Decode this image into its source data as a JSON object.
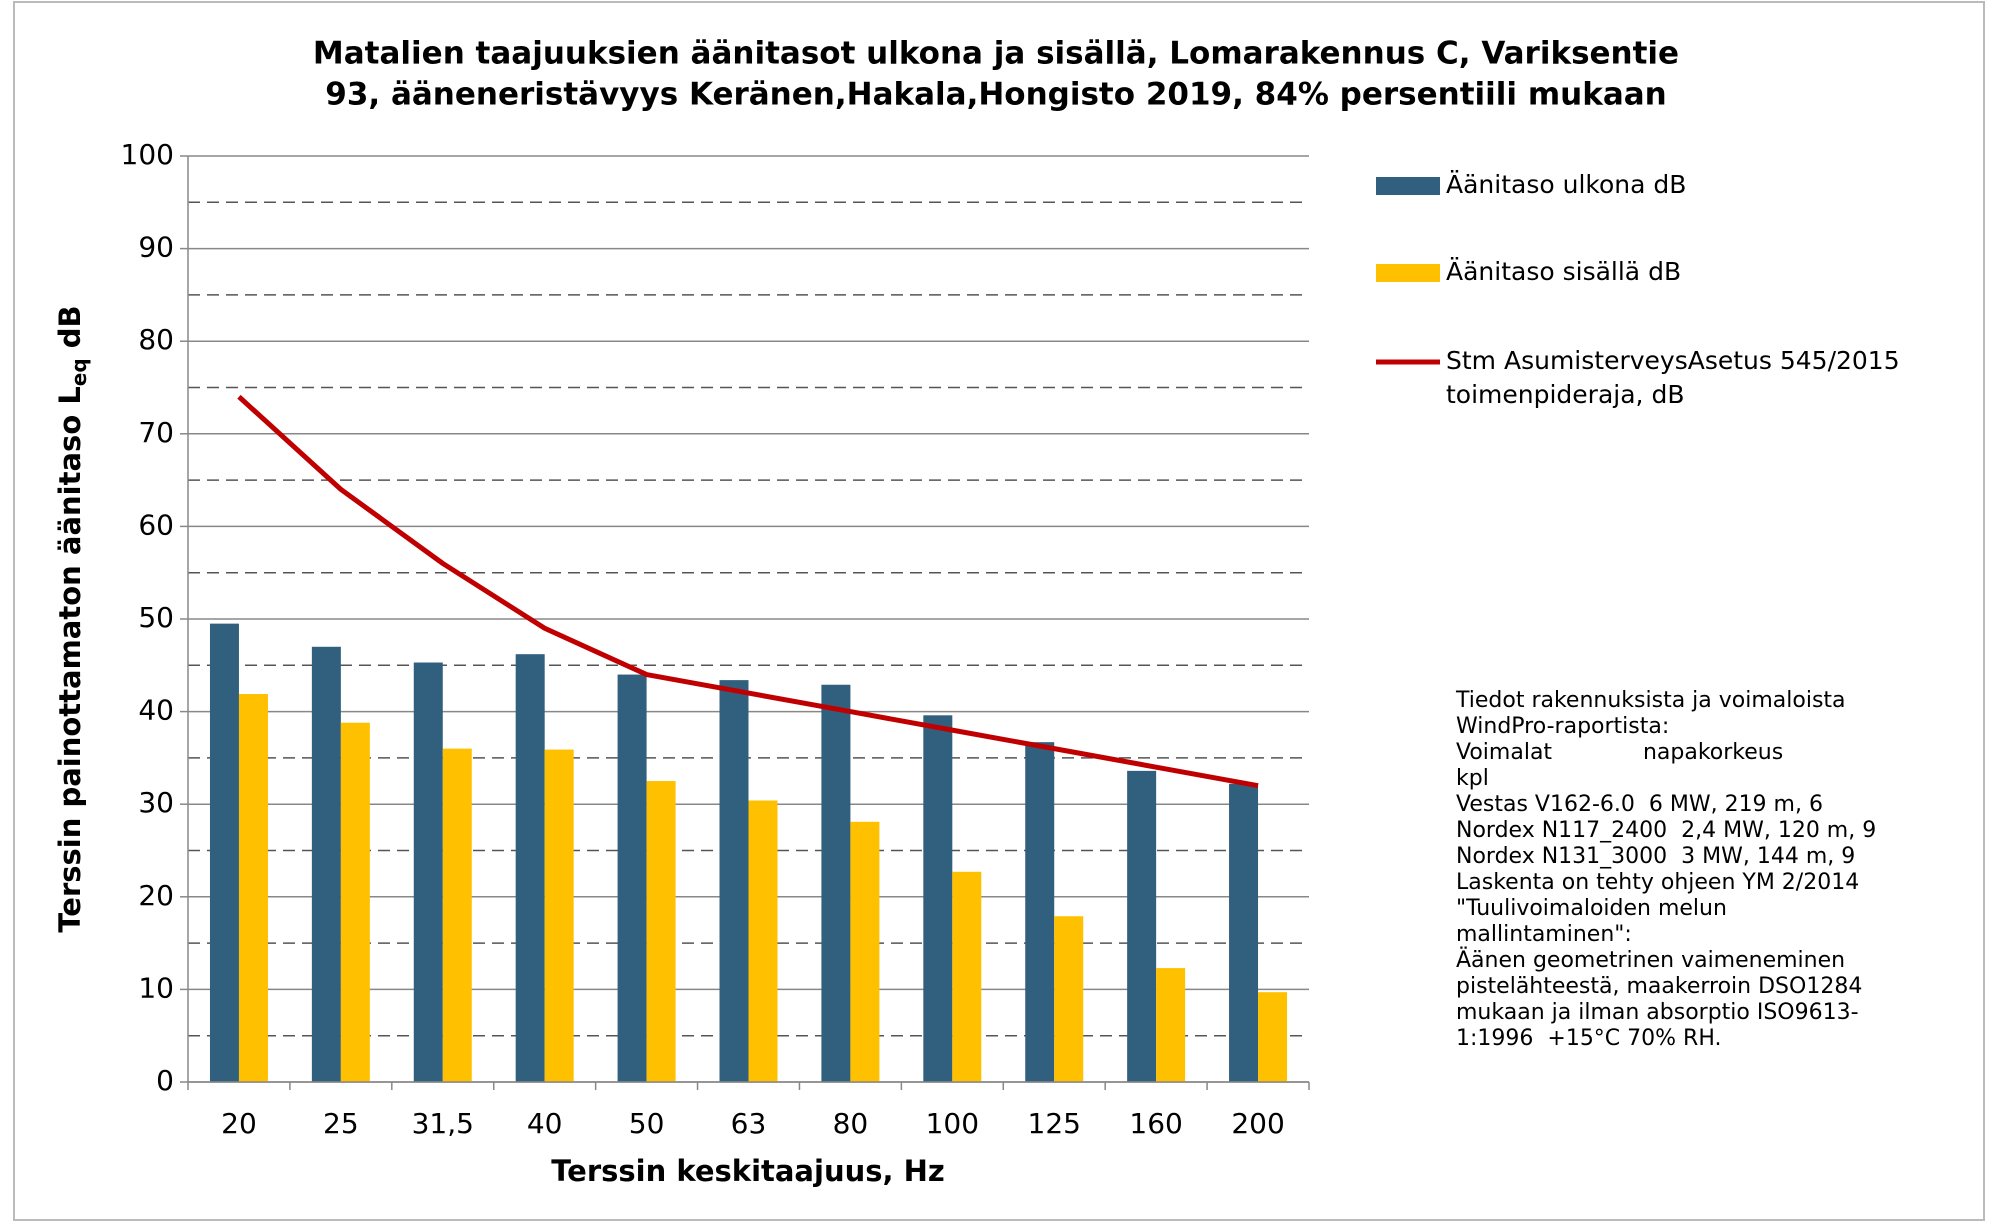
{
  "chart_data": {
    "type": "bar",
    "title": [
      "Matalien taajuuksien äänitasot ulkona ja sisällä, Lomarakennus C, Variksentie",
      "93, ääneneristävyys Keränen,Hakala,Hongisto 2019, 84% persentiili mukaan"
    ],
    "xlabel": "Terssin keskitaajuus, Hz",
    "ylabel": {
      "text": "Terssin painottamaton äänitaso L",
      "subscript": "eq",
      "suffix": " dB"
    },
    "categories": [
      "20",
      "25",
      "31,5",
      "40",
      "50",
      "63",
      "80",
      "100",
      "125",
      "160",
      "200"
    ],
    "series": [
      {
        "name": "Äänitaso ulkona dB",
        "type": "bar",
        "color": "#31607f",
        "values": [
          49.5,
          47.0,
          45.3,
          46.2,
          44.0,
          43.4,
          42.9,
          39.6,
          36.7,
          33.6,
          32.2
        ]
      },
      {
        "name": "Äänitaso sisällä dB",
        "type": "bar",
        "color": "#ffc000",
        "values": [
          41.9,
          38.8,
          36.0,
          35.9,
          32.5,
          30.4,
          28.1,
          22.7,
          17.9,
          12.3,
          9.7
        ]
      },
      {
        "name": [
          "Stm AsumisterveysAsetus 545/2015",
          "toimenpideraja, dB"
        ],
        "type": "line",
        "color": "#c00000",
        "values": [
          74,
          64,
          56,
          49,
          44,
          42,
          40,
          38,
          36,
          34,
          32
        ]
      }
    ],
    "ylim": [
      0,
      100
    ],
    "yticks": [
      0,
      10,
      20,
      30,
      40,
      50,
      60,
      70,
      80,
      90,
      100
    ],
    "minor_gridlines": [
      5,
      15,
      25,
      35,
      45,
      55,
      65,
      75,
      85,
      95
    ],
    "grid": true,
    "legend": "right",
    "annotation": [
      "Tiedot rakennuksista ja voimaloista",
      "WindPro-raportista:",
      "Voimalat             napakorkeus",
      "kpl",
      "Vestas V162-6.0  6 MW, 219 m, 6",
      "Nordex N117_2400  2,4 MW, 120 m, 9",
      "Nordex N131_3000  3 MW, 144 m, 9",
      "Laskenta on tehty ohjeen YM 2/2014",
      "\"Tuulivoimaloiden melun",
      "mallintaminen\":",
      "Äänen geometrinen vaimeneminen",
      "pistelähteestä, maakerroin DSO1284",
      "mukaan ja ilman absorptio ISO9613-",
      "1:1996  +15°C 70% RH."
    ]
  }
}
